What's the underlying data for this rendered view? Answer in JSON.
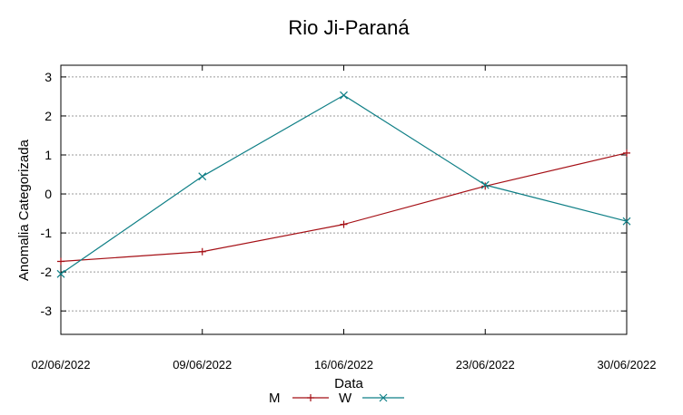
{
  "chart_data": {
    "type": "line",
    "title": "Rio Ji-Paraná",
    "xlabel": "Data",
    "ylabel": "Anomalia Categorizada",
    "categories": [
      "02/06/2022",
      "09/06/2022",
      "16/06/2022",
      "23/06/2022",
      "30/06/2022"
    ],
    "x_days": [
      2,
      9,
      16,
      23,
      30
    ],
    "ylim": [
      -3.6,
      3.3
    ],
    "yticks": [
      3,
      2,
      1,
      0,
      -1,
      -2,
      -3
    ],
    "grid": true,
    "legend_position": "bottom-center",
    "series": [
      {
        "name": "M",
        "color": "#a50f15",
        "marker": "+",
        "values": [
          -1.73,
          -1.48,
          -0.78,
          0.2,
          1.05
        ]
      },
      {
        "name": "W",
        "color": "#0f7f86",
        "marker": "x",
        "values": [
          -2.05,
          0.45,
          2.53,
          0.23,
          -0.7
        ]
      }
    ]
  }
}
